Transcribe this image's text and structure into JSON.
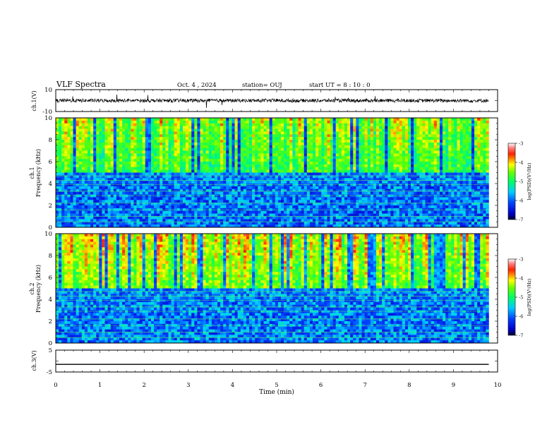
{
  "header": {
    "title": "VLF Spectra",
    "date": "Oct. 4 , 2024",
    "station": "station= OUJ",
    "start": "start  UT =  8 : 10 : 0"
  },
  "panels": {
    "ch1_wave": {
      "ylabel": "ch.1(V)",
      "ticks": [
        "10",
        "-10"
      ]
    },
    "ch1_spec": {
      "ylabel1": "ch.1",
      "ylabel2": "Frequency (kHz)",
      "ticks": [
        "0",
        "2",
        "4",
        "6",
        "8",
        "10"
      ]
    },
    "ch2_spec": {
      "ylabel1": "ch.2",
      "ylabel2": "Frequency (kHz)",
      "ticks": [
        "0",
        "2",
        "4",
        "6",
        "8",
        "10"
      ]
    },
    "ch3_wave": {
      "ylabel": "ch.3(V)",
      "ticks": [
        "5",
        "0",
        "-5"
      ]
    }
  },
  "xaxis": {
    "label": "Time (min)",
    "ticks": [
      "0",
      "1",
      "2",
      "3",
      "4",
      "5",
      "6",
      "7",
      "8",
      "9",
      "10"
    ]
  },
  "colorbar": {
    "label": "log(PSD)(V²/Hz)",
    "ticks": [
      "-3",
      "-4",
      "-5",
      "-6",
      "-7"
    ],
    "colors": [
      "#ffffff",
      "#ff0000",
      "#ffff00",
      "#00ff00",
      "#00ffff",
      "#0000ff",
      "#000040"
    ]
  },
  "chart_data": [
    {
      "type": "line",
      "title": "VLF Spectra",
      "xlabel": "Time (min)",
      "ylabel": "ch.1(V)",
      "xlim": [
        0,
        10
      ],
      "ylim": [
        -10,
        10
      ],
      "note_values": "noisy waveform centered near 0 V spanning 0 to 9.8 min",
      "series": [
        {
          "x_range": [
            0,
            9.8
          ],
          "level": 0
        }
      ]
    },
    {
      "type": "heatmap",
      "xlabel": "Time (min)",
      "ylabel": "Frequency (kHz)",
      "xlim": [
        0,
        10
      ],
      "ylim": [
        0,
        10
      ],
      "data_x_range": [
        0,
        9.8
      ],
      "zlabel": "log(PSD)(V²/Hz)",
      "zlim": [
        -7,
        -3
      ]
    },
    {
      "type": "heatmap",
      "xlabel": "Time (min)",
      "ylabel": "Frequency (kHz)",
      "xlim": [
        0,
        10
      ],
      "ylim": [
        0,
        10
      ],
      "data_x_range": [
        0,
        9.8
      ],
      "zlabel": "log(PSD)(V²/Hz)",
      "zlim": [
        -7,
        -3
      ]
    },
    {
      "type": "line",
      "xlabel": "Time (min)",
      "ylabel": "ch.3(V)",
      "xlim": [
        0,
        10
      ],
      "ylim": [
        -5,
        5
      ],
      "series": [
        {
          "x_range": [
            0,
            9.8
          ],
          "values": [
            -1.5
          ]
        }
      ]
    }
  ]
}
